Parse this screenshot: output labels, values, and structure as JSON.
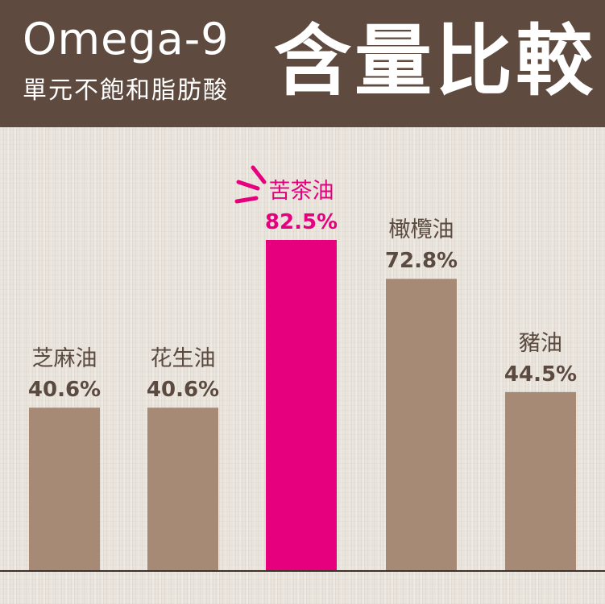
{
  "header": {
    "title_en": "Omega-9",
    "subtitle": "單元不飽和脂肪酸",
    "title_zh": "含量比較"
  },
  "colors": {
    "header_bg": "#5e4a3e",
    "bar_default": "#a68a75",
    "bar_highlight": "#e6007e",
    "label_default": "#5b4a40",
    "label_highlight": "#e6007e",
    "baseline": "#3d3129"
  },
  "chart_data": {
    "type": "bar",
    "title": "含量比較",
    "categories": [
      "芝麻油",
      "花生油",
      "苦茶油",
      "橄欖油",
      "豬油"
    ],
    "values": [
      40.6,
      40.6,
      82.5,
      72.8,
      44.5
    ],
    "value_labels": [
      "40.6%",
      "40.6%",
      "82.5%",
      "72.8%",
      "44.5%"
    ],
    "highlight_index": 2,
    "ylim": [
      0,
      100
    ],
    "grid": false,
    "legend": "none"
  }
}
